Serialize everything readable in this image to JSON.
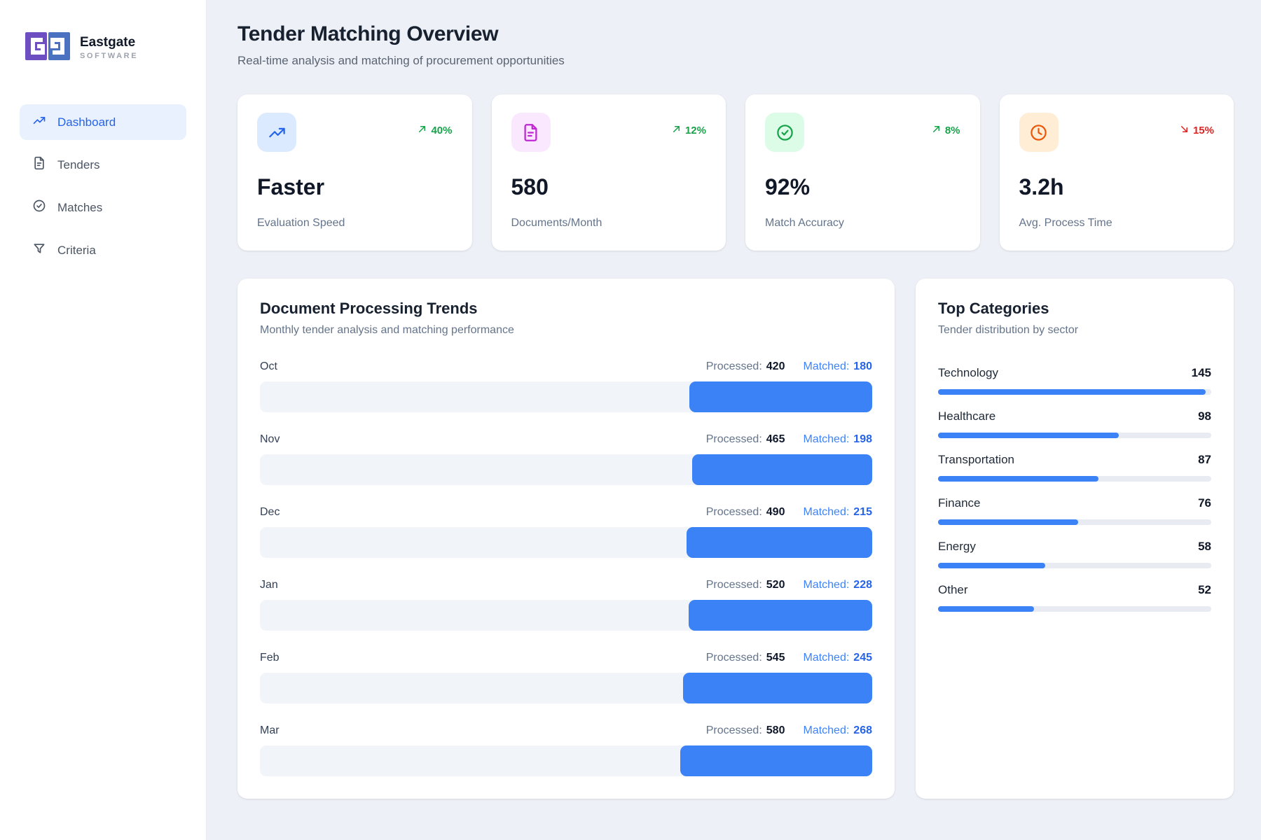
{
  "colors": {
    "accent_blue": "#2563eb",
    "bar_blue": "#3b82f6",
    "bar_track": "#f1f4f8",
    "category_track": "#e8ecf2",
    "trend_up_green": "#16a34a",
    "trend_down_red": "#dc2626",
    "logo_purple": "#6d4fc2",
    "logo_blue": "#4a72c0"
  },
  "brand": {
    "name": "Eastgate",
    "subtitle": "SOFTWARE"
  },
  "sidebar": {
    "items": [
      {
        "label": "Dashboard",
        "icon": "trending-up-icon",
        "active": true
      },
      {
        "label": "Tenders",
        "icon": "file-icon",
        "active": false
      },
      {
        "label": "Matches",
        "icon": "check-circle-icon",
        "active": false
      },
      {
        "label": "Criteria",
        "icon": "filter-icon",
        "active": false
      }
    ]
  },
  "header": {
    "title": "Tender Matching Overview",
    "subtitle": "Real-time analysis and matching of procurement opportunities"
  },
  "stats": [
    {
      "value": "Faster",
      "label": "Evaluation Speed",
      "trend": "40%",
      "direction": "up",
      "icon": "trending-up-icon",
      "icon_color": "#2563eb",
      "tile_color": "#dbeafe",
      "trend_color": "#16a34a"
    },
    {
      "value": "580",
      "label": "Documents/Month",
      "trend": "12%",
      "direction": "up",
      "icon": "file-icon",
      "icon_color": "#c026d3",
      "tile_color": "#fae8ff",
      "trend_color": "#16a34a"
    },
    {
      "value": "92%",
      "label": "Match Accuracy",
      "trend": "8%",
      "direction": "up",
      "icon": "check-circle-icon",
      "icon_color": "#16a34a",
      "tile_color": "#dcfce7",
      "trend_color": "#16a34a"
    },
    {
      "value": "3.2h",
      "label": "Avg. Process Time",
      "trend": "15%",
      "direction": "down",
      "icon": "clock-icon",
      "icon_color": "#ea580c",
      "tile_color": "#ffedd5",
      "trend_color": "#dc2626"
    }
  ],
  "chart_data": [
    {
      "type": "bar",
      "title": "Document Processing Trends",
      "subtitle": "Monthly tender analysis and matching performance",
      "orientation": "horizontal",
      "bar_align": "right",
      "categories": [
        "Oct",
        "Nov",
        "Dec",
        "Jan",
        "Feb",
        "Mar"
      ],
      "series": [
        {
          "name": "Processed",
          "values": [
            420,
            465,
            490,
            520,
            545,
            580
          ]
        },
        {
          "name": "Matched",
          "values": [
            180,
            198,
            215,
            228,
            245,
            268
          ]
        }
      ],
      "value_labels": {
        "processed": "Processed:",
        "matched": "Matched:"
      },
      "bar_fill_pct": [
        29.9,
        29.4,
        30.3,
        30.0,
        30.9,
        31.3
      ]
    },
    {
      "type": "bar",
      "title": "Top Categories",
      "subtitle": "Tender distribution by sector",
      "orientation": "horizontal",
      "categories": [
        "Technology",
        "Healthcare",
        "Transportation",
        "Finance",
        "Energy",
        "Other"
      ],
      "values": [
        145,
        98,
        87,
        76,
        58,
        52
      ],
      "max": 145
    }
  ]
}
